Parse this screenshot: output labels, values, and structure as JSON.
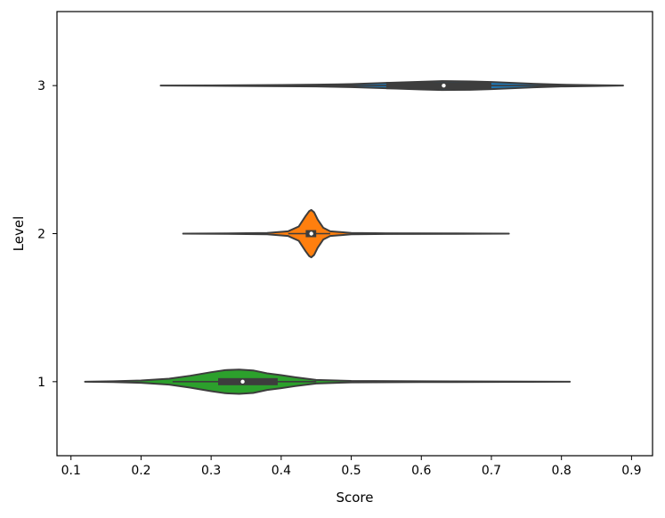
{
  "chart_data": {
    "type": "violin",
    "orientation": "horizontal",
    "title": "",
    "xlabel": "Score",
    "ylabel": "Level",
    "xlim": [
      0.08,
      0.93
    ],
    "ylim": [
      0.5,
      3.5
    ],
    "x_ticks": [
      0.1,
      0.2,
      0.3,
      0.4,
      0.5,
      0.6,
      0.7,
      0.8,
      0.9
    ],
    "x_tick_labels": [
      "0.1",
      "0.2",
      "0.3",
      "0.4",
      "0.5",
      "0.6",
      "0.7",
      "0.8",
      "0.9"
    ],
    "y_ticks": [
      1,
      2,
      3
    ],
    "y_tick_labels": [
      "1",
      "2",
      "3"
    ],
    "grid": false,
    "series": [
      {
        "category": "1",
        "color": "#2ca02c",
        "min": 0.12,
        "max": 0.812,
        "q1": 0.31,
        "median": 0.345,
        "q3": 0.395,
        "whisker_low": 0.245,
        "whisker_high": 0.45,
        "density": [
          [
            0.12,
            0.0
          ],
          [
            0.16,
            0.006
          ],
          [
            0.2,
            0.02
          ],
          [
            0.24,
            0.05
          ],
          [
            0.27,
            0.1
          ],
          [
            0.3,
            0.16
          ],
          [
            0.32,
            0.195
          ],
          [
            0.34,
            0.205
          ],
          [
            0.36,
            0.19
          ],
          [
            0.38,
            0.14
          ],
          [
            0.4,
            0.11
          ],
          [
            0.42,
            0.075
          ],
          [
            0.45,
            0.03
          ],
          [
            0.5,
            0.012
          ],
          [
            0.6,
            0.007
          ],
          [
            0.7,
            0.004
          ],
          [
            0.812,
            0.0
          ]
        ]
      },
      {
        "category": "2",
        "color": "#ff7f0e",
        "min": 0.26,
        "max": 0.725,
        "q1": 0.435,
        "median": 0.443,
        "q3": 0.45,
        "whisker_low": 0.41,
        "whisker_high": 0.47,
        "density": [
          [
            0.26,
            0.0
          ],
          [
            0.32,
            0.004
          ],
          [
            0.38,
            0.012
          ],
          [
            0.41,
            0.04
          ],
          [
            0.425,
            0.12
          ],
          [
            0.435,
            0.3
          ],
          [
            0.44,
            0.38
          ],
          [
            0.443,
            0.4
          ],
          [
            0.447,
            0.36
          ],
          [
            0.452,
            0.24
          ],
          [
            0.46,
            0.1
          ],
          [
            0.47,
            0.04
          ],
          [
            0.5,
            0.012
          ],
          [
            0.55,
            0.006
          ],
          [
            0.65,
            0.003
          ],
          [
            0.725,
            0.0
          ]
        ]
      },
      {
        "category": "3",
        "color": "#1f77b4",
        "min": 0.228,
        "max": 0.888,
        "q1": 0.55,
        "median": 0.632,
        "q3": 0.7,
        "whisker_low": 0.42,
        "whisker_high": 0.82,
        "density": [
          [
            0.228,
            0.0
          ],
          [
            0.3,
            0.003
          ],
          [
            0.4,
            0.01
          ],
          [
            0.45,
            0.015
          ],
          [
            0.5,
            0.025
          ],
          [
            0.55,
            0.045
          ],
          [
            0.6,
            0.065
          ],
          [
            0.63,
            0.075
          ],
          [
            0.67,
            0.07
          ],
          [
            0.7,
            0.06
          ],
          [
            0.73,
            0.045
          ],
          [
            0.76,
            0.03
          ],
          [
            0.8,
            0.015
          ],
          [
            0.85,
            0.006
          ],
          [
            0.888,
            0.0
          ]
        ]
      }
    ]
  }
}
